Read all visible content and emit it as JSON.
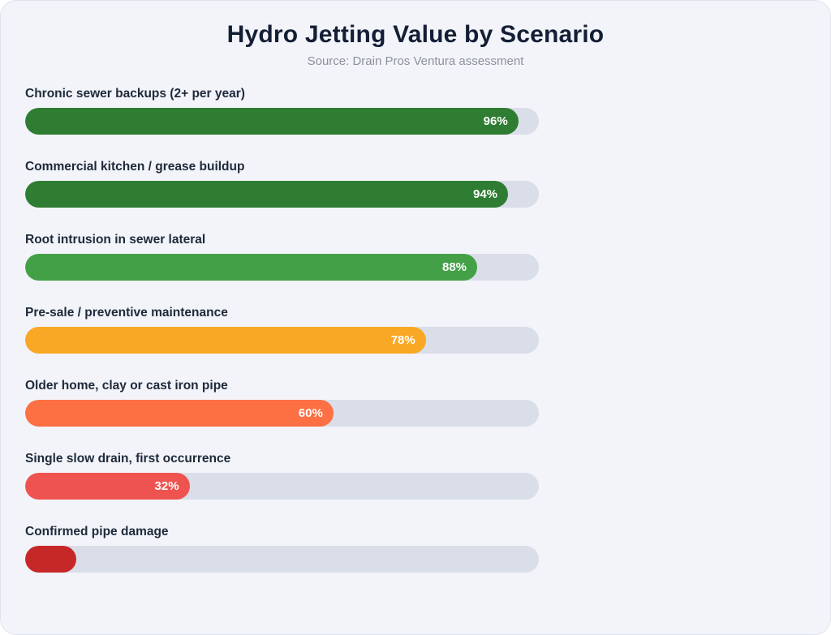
{
  "page": {
    "background": "#ffffff",
    "canvas_background": "#f2f4f9",
    "canvas_border_color": "#dfe3ec"
  },
  "header": {
    "title": "Hydro Jetting Value by Scenario",
    "subtitle": "Source: Drain Pros Ventura assessment",
    "title_color": "#141e35",
    "subtitle_color": "#8b919c"
  },
  "chart_data": {
    "type": "bar",
    "orientation": "horizontal",
    "title": "Hydro Jetting Value by Scenario",
    "subtitle": "Source: Drain Pros Ventura assessment",
    "xlabel": "",
    "ylabel": "",
    "xlim": [
      0,
      100
    ],
    "unit": "%",
    "grid": false,
    "legend": false,
    "track_color": "#d9dee8",
    "label_color": "#1e2a3a",
    "value_label_color": "#ffffff",
    "categories": [
      "Chronic sewer backups (2+ per year)",
      "Commercial kitchen / grease buildup",
      "Root intrusion in sewer lateral",
      "Pre-sale / preventive maintenance",
      "Older home, clay or cast iron pipe",
      "Single slow drain, first occurrence",
      "Confirmed pipe damage"
    ],
    "values": [
      96,
      94,
      88,
      78,
      60,
      32,
      10
    ],
    "items": [
      {
        "label": "Chronic sewer backups (2+ per year)",
        "value": 96,
        "value_label": "96%",
        "color": "#2e7d32"
      },
      {
        "label": "Commercial kitchen / grease buildup",
        "value": 94,
        "value_label": "94%",
        "color": "#2e7d32"
      },
      {
        "label": "Root intrusion in sewer lateral",
        "value": 88,
        "value_label": "88%",
        "color": "#43a047"
      },
      {
        "label": "Pre-sale / preventive maintenance",
        "value": 78,
        "value_label": "78%",
        "color": "#f9a825"
      },
      {
        "label": "Older home, clay or cast iron pipe",
        "value": 60,
        "value_label": "60%",
        "color": "#fc7044"
      },
      {
        "label": "Single slow drain, first occurrence",
        "value": 32,
        "value_label": "32%",
        "color": "#ef5350"
      },
      {
        "label": "Confirmed pipe damage",
        "value": 10,
        "value_label": "",
        "color": "#c62828"
      }
    ]
  }
}
